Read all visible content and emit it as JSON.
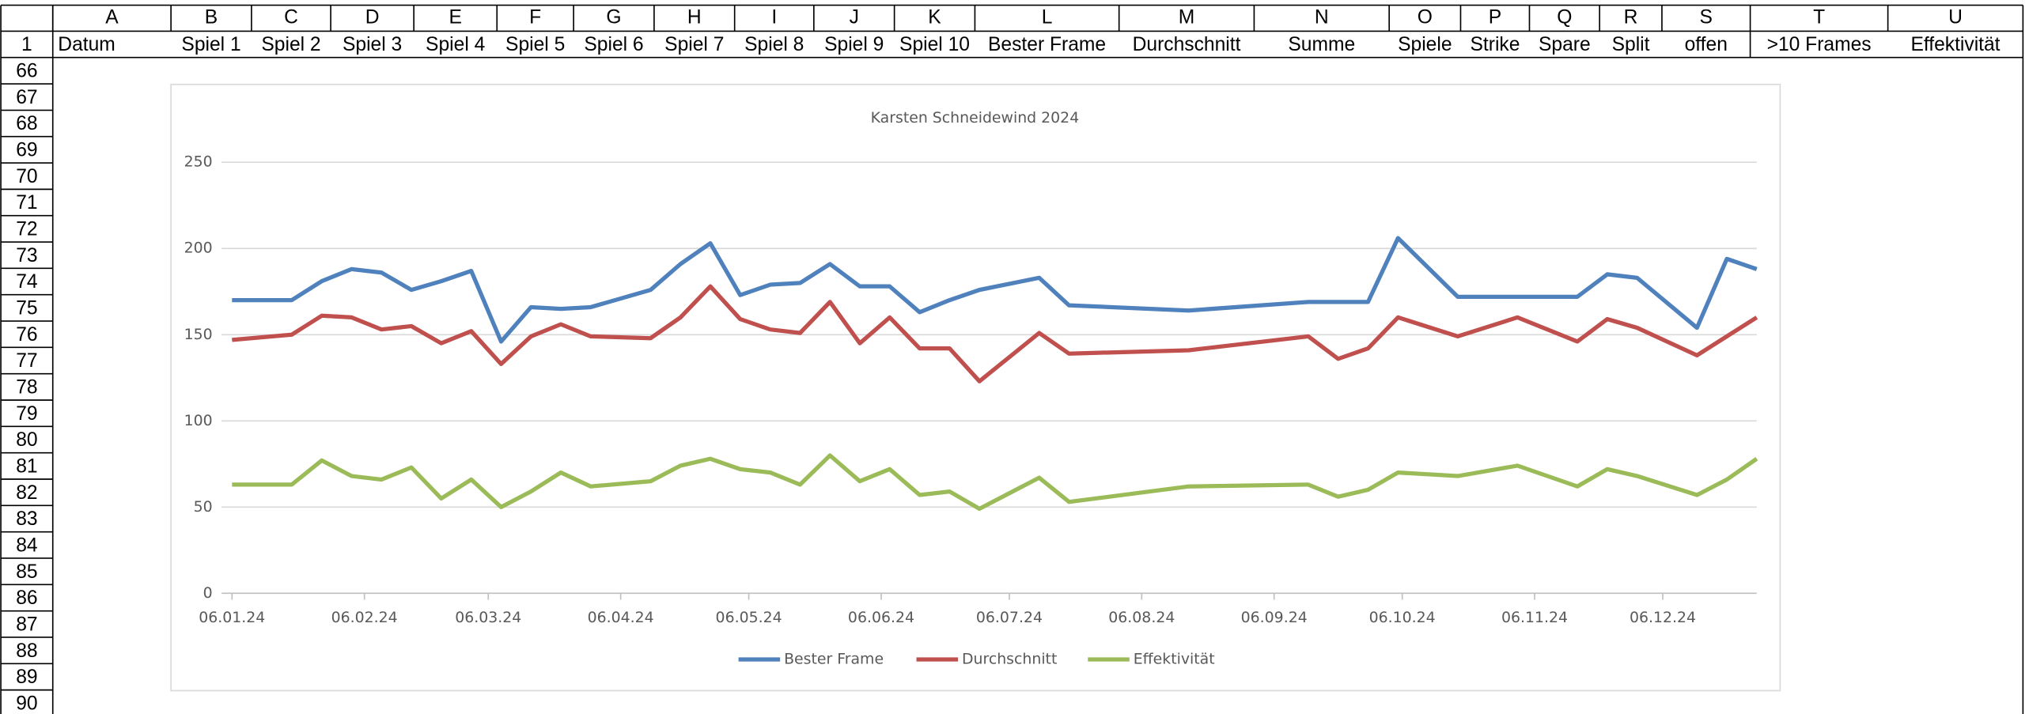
{
  "sheet": {
    "columns": [
      "A",
      "B",
      "C",
      "D",
      "E",
      "F",
      "G",
      "H",
      "I",
      "J",
      "K",
      "L",
      "M",
      "N",
      "O",
      "P",
      "Q",
      "R",
      "S",
      "T",
      "U"
    ],
    "header_row": [
      "Datum",
      "Spiel 1",
      "Spiel 2",
      "Spiel 3",
      "Spiel 4",
      "Spiel 5",
      "Spiel 6",
      "Spiel 7",
      "Spiel 8",
      "Spiel 9",
      "Spiel 10",
      "Bester Frame",
      "Durchschnitt",
      "Summe",
      "Spiele",
      "Strike",
      "Spare",
      "Split",
      "offen",
      ">10 Frames",
      "Effektivität"
    ],
    "row_numbers": [
      1,
      66,
      67,
      68,
      69,
      70,
      71,
      72,
      73,
      74,
      75,
      76,
      77,
      78,
      79,
      80,
      81,
      82,
      83,
      84,
      85,
      86,
      87,
      88,
      89,
      90
    ]
  },
  "chart_data": {
    "type": "line",
    "title": "Karsten Schneidewind 2024",
    "x": [
      "06.01.24",
      "20.01.24",
      "27.01.24",
      "03.02.24",
      "10.02.24",
      "17.02.24",
      "24.02.24",
      "02.03.24",
      "09.03.24",
      "16.03.24",
      "23.03.24",
      "30.03.24",
      "13.04.24",
      "20.04.24",
      "27.04.24",
      "04.05.24",
      "11.05.24",
      "18.05.24",
      "25.05.24",
      "01.06.24",
      "08.06.24",
      "15.06.24",
      "22.06.24",
      "29.06.24",
      "13.07.24",
      "20.07.24",
      "17.08.24",
      "14.09.24",
      "21.09.24",
      "28.09.24",
      "05.10.24",
      "19.10.24",
      "02.11.24",
      "16.11.24",
      "23.11.24",
      "30.11.24",
      "14.12.24",
      "21.12.24",
      "28.12.24"
    ],
    "series": [
      {
        "name": "Bester Frame",
        "color": "#4f81bd",
        "values": [
          170,
          170,
          181,
          188,
          186,
          176,
          181,
          187,
          146,
          166,
          165,
          166,
          176,
          191,
          203,
          173,
          179,
          180,
          191,
          178,
          178,
          163,
          170,
          176,
          183,
          167,
          164,
          169,
          169,
          169,
          206,
          172,
          172,
          172,
          185,
          183,
          154,
          194,
          188
        ]
      },
      {
        "name": "Durchschnitt",
        "color": "#c0504d",
        "values": [
          147,
          150,
          161,
          160,
          153,
          155,
          145,
          152,
          133,
          149,
          156,
          149,
          148,
          160,
          178,
          159,
          153,
          151,
          169,
          145,
          160,
          142,
          142,
          123,
          151,
          139,
          141,
          149,
          136,
          142,
          160,
          149,
          160,
          146,
          159,
          154,
          138,
          149,
          160
        ]
      },
      {
        "name": "Effektivität",
        "color": "#9bbb59",
        "values": [
          63,
          63,
          77,
          68,
          66,
          73,
          55,
          66,
          50,
          59,
          70,
          62,
          65,
          74,
          78,
          72,
          70,
          63,
          80,
          65,
          72,
          57,
          59,
          49,
          67,
          53,
          62,
          63,
          56,
          60,
          70,
          68,
          74,
          62,
          72,
          68,
          57,
          66,
          78
        ]
      }
    ],
    "xlim": [
      "06.01.24",
      "28.12.24"
    ],
    "xticks": [
      "06.01.24",
      "06.02.24",
      "06.03.24",
      "06.04.24",
      "06.05.24",
      "06.06.24",
      "06.07.24",
      "06.08.24",
      "06.09.24",
      "06.10.24",
      "06.11.24",
      "06.12.24"
    ],
    "ylim": [
      0,
      250
    ],
    "yticks": [
      0,
      50,
      100,
      150,
      200,
      250
    ],
    "grid": true,
    "legend": "bottom"
  }
}
